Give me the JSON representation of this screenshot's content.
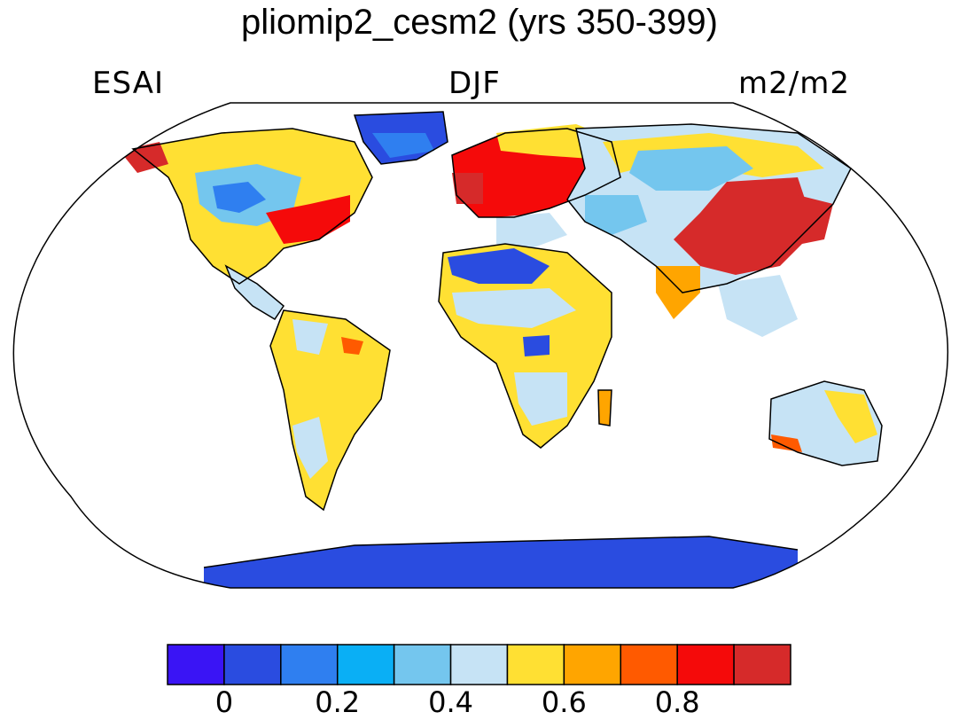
{
  "title": "pliomip2_cesm2 (yrs 350-399)",
  "left_label": "ESAI",
  "center_label": "DJF",
  "right_label": "m2/m2",
  "colorbar": {
    "colors": [
      "#3a14f5",
      "#2a4ce0",
      "#2f7ff0",
      "#0aaff5",
      "#74c6ee",
      "#c6e3f5",
      "#ffe033",
      "#ffa500",
      "#ff5a00",
      "#f50a0a",
      "#d62a2a"
    ],
    "tick_labels": [
      "0",
      "0.2",
      "0.4",
      "0.6",
      "0.8"
    ]
  },
  "map": {
    "projection": "Robinson",
    "ocean_color": "#ffffff",
    "coastline_color": "#000000"
  }
}
